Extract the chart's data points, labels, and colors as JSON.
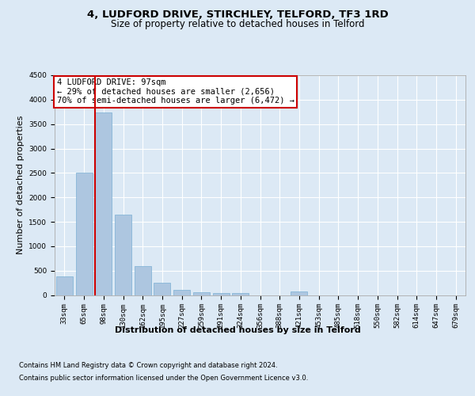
{
  "title": "4, LUDFORD DRIVE, STIRCHLEY, TELFORD, TF3 1RD",
  "subtitle": "Size of property relative to detached houses in Telford",
  "xlabel": "Distribution of detached houses by size in Telford",
  "ylabel": "Number of detached properties",
  "categories": [
    "33sqm",
    "65sqm",
    "98sqm",
    "130sqm",
    "162sqm",
    "195sqm",
    "227sqm",
    "259sqm",
    "291sqm",
    "324sqm",
    "356sqm",
    "388sqm",
    "421sqm",
    "453sqm",
    "485sqm",
    "518sqm",
    "550sqm",
    "582sqm",
    "614sqm",
    "647sqm",
    "679sqm"
  ],
  "values": [
    380,
    2510,
    3730,
    1640,
    600,
    245,
    110,
    60,
    45,
    40,
    0,
    0,
    65,
    0,
    0,
    0,
    0,
    0,
    0,
    0,
    0
  ],
  "bar_color": "#adc6e0",
  "bar_edge_color": "#7aafd4",
  "highlight_index": 2,
  "highlight_line_color": "#cc0000",
  "ylim": [
    0,
    4500
  ],
  "yticks": [
    0,
    500,
    1000,
    1500,
    2000,
    2500,
    3000,
    3500,
    4000,
    4500
  ],
  "annotation_text": "4 LUDFORD DRIVE: 97sqm\n← 29% of detached houses are smaller (2,656)\n70% of semi-detached houses are larger (6,472) →",
  "annotation_box_color": "#ffffff",
  "annotation_box_edge_color": "#cc0000",
  "footer_line1": "Contains HM Land Registry data © Crown copyright and database right 2024.",
  "footer_line2": "Contains public sector information licensed under the Open Government Licence v3.0.",
  "background_color": "#dce9f5",
  "plot_background_color": "#dce9f5",
  "grid_color": "#ffffff",
  "title_fontsize": 9.5,
  "subtitle_fontsize": 8.5,
  "tick_fontsize": 6.5,
  "ylabel_fontsize": 8,
  "xlabel_fontsize": 8,
  "annotation_fontsize": 7.5,
  "footer_fontsize": 6.0
}
